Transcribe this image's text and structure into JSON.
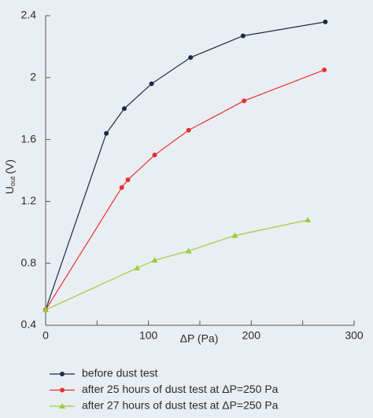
{
  "chart_data": {
    "type": "line",
    "xlabel": "ΔP (Pa)",
    "ylabel": {
      "main": "U",
      "sub": "out",
      "unit": "(V)"
    },
    "xlim": [
      0,
      300
    ],
    "xticks": [
      0,
      100,
      200,
      300
    ],
    "xminorticks": [
      50,
      150,
      250
    ],
    "ylim": [
      0.4,
      2.4
    ],
    "yticks": [
      0.4,
      0.8,
      1.2,
      1.6,
      2,
      2.4
    ],
    "series": [
      {
        "name": "before dust test",
        "color": "#1b2a48",
        "marker": "circle",
        "x": [
          0,
          59,
          76.5,
          103,
          141,
          192,
          272
        ],
        "values": [
          0.5,
          1.64,
          1.8,
          1.96,
          2.13,
          2.27,
          2.36
        ]
      },
      {
        "name": "after 25 hours of dust test at ΔP=250 Pa",
        "color": "#e8312f",
        "marker": "circle",
        "x": [
          0,
          74,
          80,
          106,
          139,
          193,
          271
        ],
        "values": [
          0.5,
          1.29,
          1.34,
          1.5,
          1.66,
          1.85,
          2.05
        ]
      },
      {
        "name": "after 27 hours of dust test at ΔP=250 Pa",
        "color": "#9acd3c",
        "marker": "triangle",
        "x": [
          0,
          89,
          106,
          139,
          184,
          255
        ],
        "values": [
          0.5,
          0.77,
          0.82,
          0.88,
          0.98,
          1.08
        ]
      }
    ]
  }
}
